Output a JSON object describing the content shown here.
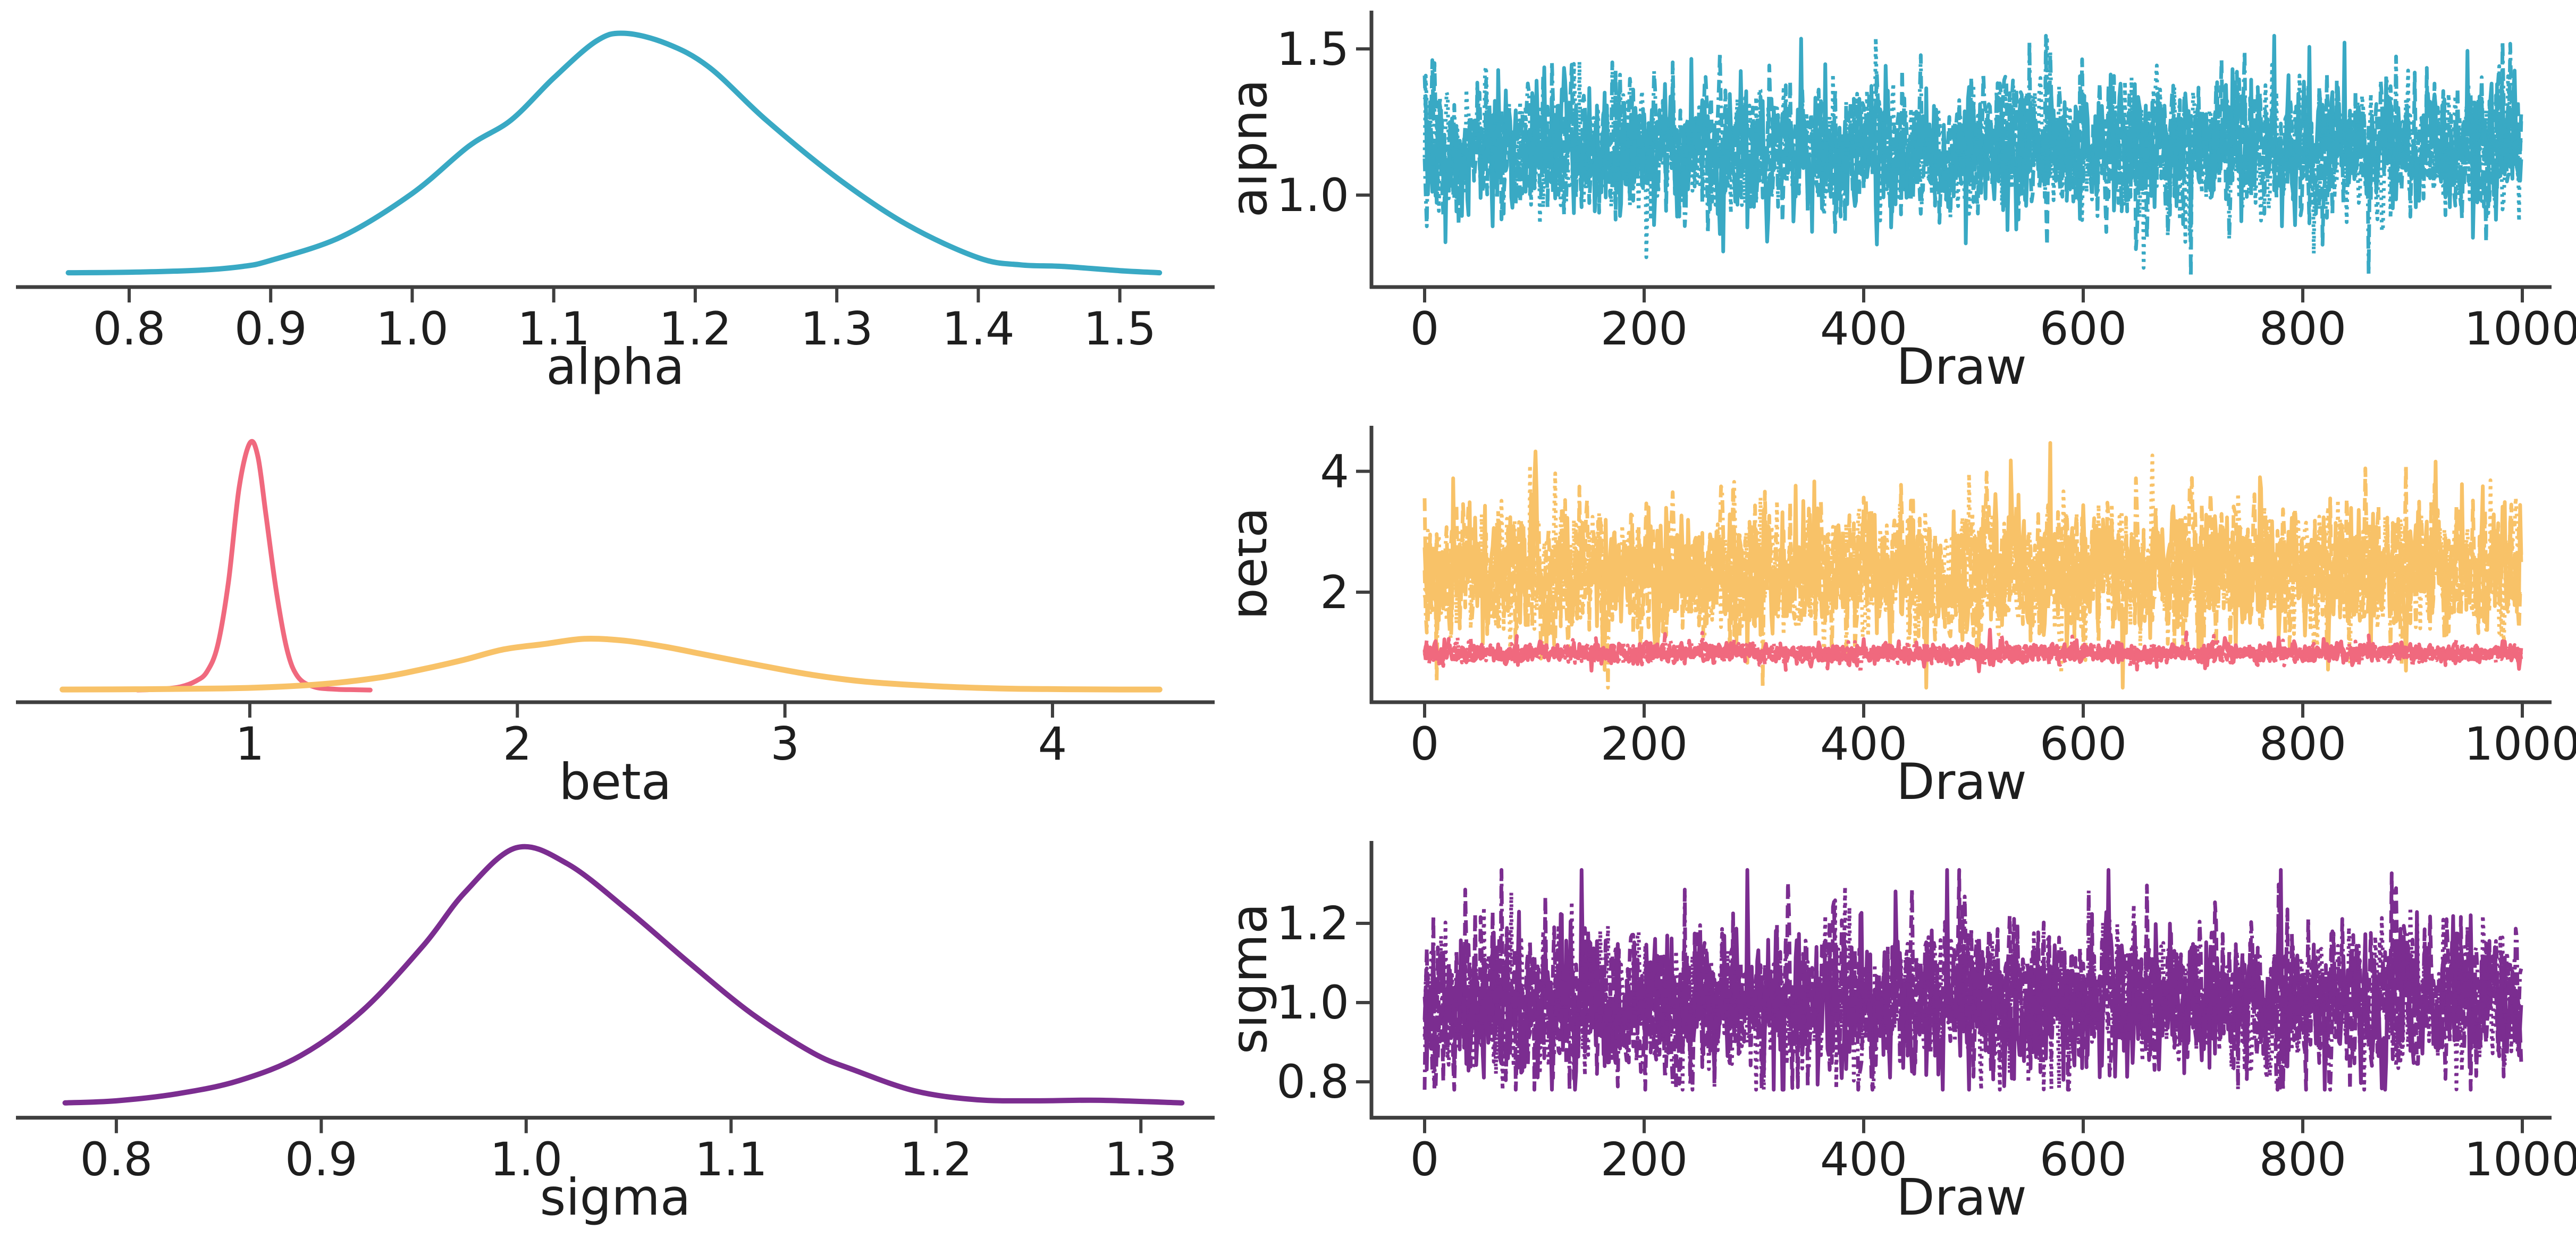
{
  "figure": {
    "description": "MCMC posterior diagnostics: 3 parameters (alpha, beta, sigma); left column kernel density estimates, right column trace plots versus draw",
    "background": "#ffffff",
    "grid": "3 rows x 2 columns"
  },
  "palette": {
    "teal": "#39A9C4",
    "pink": "#F0697E",
    "amber": "#F8C268",
    "purple": "#7B2D90",
    "spine": "#3F3F3F",
    "tick": "#3F3F3F",
    "text": "#1E1E1E"
  },
  "chart_data": [
    {
      "panel": "alpha-density",
      "type": "line",
      "kind": "density",
      "title": "",
      "xlabel": "alpha",
      "ylabel": "",
      "y_axis": "hidden (relative density, unlabeled)",
      "xlim": [
        0.72,
        1.567
      ],
      "x_ticks": [
        0.8,
        0.9,
        1.0,
        1.1,
        1.2,
        1.3,
        1.4,
        1.5
      ],
      "x_tick_labels": [
        "0.8",
        "0.9",
        "1.0",
        "1.1",
        "1.2",
        "1.3",
        "1.4",
        "1.5"
      ],
      "grid": false,
      "series": [
        {
          "name": "alpha KDE",
          "color": "#39A9C4",
          "line_width": 10,
          "x": [
            0.757,
            0.8,
            0.85,
            0.88,
            0.9,
            0.95,
            1.0,
            1.04,
            1.07,
            1.1,
            1.13,
            1.15,
            1.18,
            1.21,
            1.25,
            1.3,
            1.35,
            1.4,
            1.43,
            1.46,
            1.5,
            1.528
          ],
          "y_rel": [
            0.018,
            0.02,
            0.028,
            0.042,
            0.065,
            0.155,
            0.32,
            0.5,
            0.6,
            0.76,
            0.9,
            0.93,
            0.89,
            0.8,
            0.6,
            0.38,
            0.2,
            0.075,
            0.048,
            0.042,
            0.026,
            0.018
          ]
        }
      ]
    },
    {
      "panel": "alpha-trace",
      "type": "line",
      "kind": "trace",
      "title": "",
      "xlabel": "Draw",
      "ylabel": "alpha",
      "xlim": [
        -60,
        1060
      ],
      "ylim": [
        0.7,
        1.62
      ],
      "x_ticks": [
        0,
        200,
        400,
        600,
        800,
        1000
      ],
      "x_tick_labels": [
        "0",
        "200",
        "400",
        "600",
        "800",
        "1000"
      ],
      "y_ticks": [
        1.0,
        1.5
      ],
      "y_tick_labels": [
        "1.0",
        "1.5"
      ],
      "grid": false,
      "series": [
        {
          "name": "alpha chains",
          "color": "#39A9C4",
          "line_width": 7,
          "chains": 4,
          "draws": 1000,
          "mean": 1.155,
          "sd": 0.1,
          "clip": [
            0.72,
            1.545
          ],
          "rho": 0.3,
          "spike_prob": 0.05,
          "spike_scale": 2.0,
          "seed": 11
        }
      ]
    },
    {
      "panel": "beta-density",
      "type": "line",
      "kind": "density",
      "title": "",
      "xlabel": "beta",
      "ylabel": "",
      "y_axis": "hidden (relative density, unlabeled)",
      "xlim": [
        0.126,
        4.606
      ],
      "x_ticks": [
        1,
        2,
        3,
        4
      ],
      "x_tick_labels": [
        "1",
        "2",
        "3",
        "4"
      ],
      "grid": false,
      "series": [
        {
          "name": "beta[0] KDE",
          "color": "#F0697E",
          "line_width": 9,
          "x": [
            0.58,
            0.66,
            0.74,
            0.8,
            0.84,
            0.88,
            0.92,
            0.96,
            1.0,
            1.03,
            1.06,
            1.1,
            1.14,
            1.18,
            1.24,
            1.32,
            1.4,
            1.45
          ],
          "y_rel": [
            0.01,
            0.013,
            0.022,
            0.045,
            0.08,
            0.18,
            0.42,
            0.78,
            0.95,
            0.9,
            0.68,
            0.38,
            0.16,
            0.06,
            0.022,
            0.013,
            0.011,
            0.01
          ]
        },
        {
          "name": "beta[1] KDE",
          "color": "#F8C268",
          "line_width": 11,
          "x": [
            0.3,
            0.6,
            0.9,
            1.1,
            1.3,
            1.5,
            1.65,
            1.8,
            1.95,
            2.1,
            2.25,
            2.4,
            2.55,
            2.7,
            2.9,
            3.1,
            3.3,
            3.55,
            3.8,
            4.05,
            4.25,
            4.4
          ],
          "y_rel": [
            0.012,
            0.013,
            0.016,
            0.022,
            0.035,
            0.06,
            0.09,
            0.125,
            0.165,
            0.185,
            0.205,
            0.198,
            0.175,
            0.145,
            0.105,
            0.068,
            0.042,
            0.025,
            0.016,
            0.013,
            0.012,
            0.012
          ]
        }
      ]
    },
    {
      "panel": "beta-trace",
      "type": "line",
      "kind": "trace",
      "title": "",
      "xlabel": "Draw",
      "ylabel": "beta",
      "xlim": [
        -60,
        1060
      ],
      "ylim": [
        0.25,
        4.7
      ],
      "x_ticks": [
        0,
        200,
        400,
        600,
        800,
        1000
      ],
      "x_tick_labels": [
        "0",
        "200",
        "400",
        "600",
        "800",
        "1000"
      ],
      "y_ticks": [
        2,
        4
      ],
      "y_tick_labels": [
        "2",
        "4"
      ],
      "grid": false,
      "series": [
        {
          "name": "beta[1] chains",
          "color": "#F8C268",
          "line_width": 7,
          "chains": 4,
          "draws": 1000,
          "mean": 2.32,
          "sd": 0.47,
          "clip": [
            0.42,
            4.47
          ],
          "rho": 0.3,
          "spike_prob": 0.05,
          "spike_scale": 1.9,
          "seed": 21
        },
        {
          "name": "beta[0] chains",
          "color": "#F0697E",
          "line_width": 7,
          "chains": 4,
          "draws": 1000,
          "mean": 0.99,
          "sd": 0.07,
          "clip": [
            0.62,
            1.38
          ],
          "rho": 0.3,
          "spike_prob": 0.05,
          "spike_scale": 2.0,
          "seed": 31
        }
      ]
    },
    {
      "panel": "sigma-density",
      "type": "line",
      "kind": "density",
      "title": "",
      "xlabel": "sigma",
      "ylabel": "",
      "y_axis": "hidden (relative density, unlabeled)",
      "xlim": [
        0.751,
        1.336
      ],
      "x_ticks": [
        0.8,
        0.9,
        1.0,
        1.1,
        1.2,
        1.3
      ],
      "x_tick_labels": [
        "0.8",
        "0.9",
        "1.0",
        "1.1",
        "1.2",
        "1.3"
      ],
      "grid": false,
      "series": [
        {
          "name": "sigma KDE",
          "color": "#7B2D90",
          "line_width": 10,
          "x": [
            0.775,
            0.8,
            0.83,
            0.86,
            0.89,
            0.92,
            0.95,
            0.97,
            0.995,
            1.02,
            1.05,
            1.08,
            1.11,
            1.14,
            1.16,
            1.19,
            1.22,
            1.25,
            1.28,
            1.32
          ],
          "y_rel": [
            0.02,
            0.028,
            0.055,
            0.105,
            0.2,
            0.37,
            0.62,
            0.82,
            0.99,
            0.93,
            0.75,
            0.55,
            0.36,
            0.21,
            0.145,
            0.065,
            0.032,
            0.028,
            0.03,
            0.02
          ]
        }
      ]
    },
    {
      "panel": "sigma-trace",
      "type": "line",
      "kind": "trace",
      "title": "",
      "xlabel": "Draw",
      "ylabel": "sigma",
      "xlim": [
        -60,
        1060
      ],
      "ylim": [
        0.72,
        1.4
      ],
      "x_ticks": [
        0,
        200,
        400,
        600,
        800,
        1000
      ],
      "x_tick_labels": [
        "0",
        "200",
        "400",
        "600",
        "800",
        "1000"
      ],
      "y_ticks": [
        0.8,
        1.0,
        1.2
      ],
      "y_tick_labels": [
        "0.8",
        "1.0",
        "1.2"
      ],
      "grid": false,
      "series": [
        {
          "name": "sigma chains",
          "color": "#7B2D90",
          "line_width": 7,
          "chains": 4,
          "draws": 1000,
          "mean": 1.005,
          "sd": 0.082,
          "clip": [
            0.78,
            1.335
          ],
          "rho": 0.3,
          "spike_prob": 0.05,
          "spike_scale": 2.0,
          "seed": 41
        }
      ]
    }
  ]
}
